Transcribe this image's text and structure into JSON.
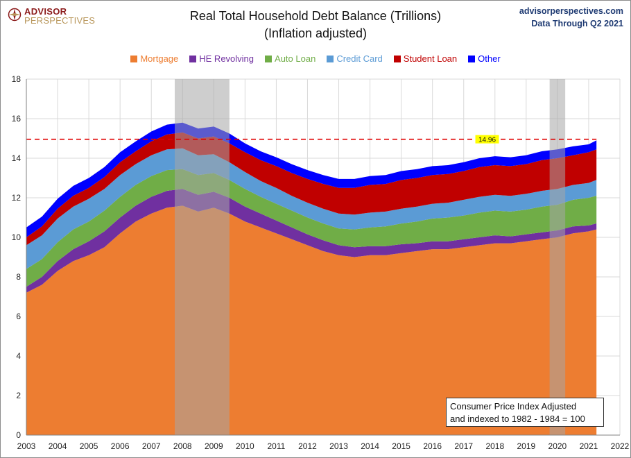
{
  "header": {
    "logo_line1": "ADVISOR",
    "logo_line2": "PERSPECTIVES",
    "title_line1": "Real Total Household Debt Balance (Trillions)",
    "title_line2": "(Inflation adjusted)",
    "source_line1": "advisorperspectives.com",
    "source_line2": "Data Through Q2 2021"
  },
  "note": {
    "line1": "Consumer Price Index Adjusted",
    "line2": "and indexed to 1982 - 1984 = 100"
  },
  "colors": {
    "Mortgage": "#ed7d31",
    "HE Revolving": "#7030a0",
    "Auto Loan": "#70ad47",
    "Credit Card": "#5b9bd5",
    "Student Loan": "#c00000",
    "Other": "#0000ff",
    "reference_line": "#e00000",
    "recession": "#a6a6a6",
    "grid": "#d9d9d9",
    "marker_bg": "#ffff00"
  },
  "chart_data": {
    "type": "area",
    "stacked": true,
    "title": "Real Total Household Debt Balance (Trillions)",
    "subtitle": "(Inflation adjusted)",
    "xlabel": "",
    "ylabel": "",
    "xlim": [
      2003,
      2022
    ],
    "ylim": [
      0,
      18
    ],
    "x_ticks": [
      2003,
      2004,
      2005,
      2006,
      2007,
      2008,
      2009,
      2010,
      2011,
      2012,
      2013,
      2014,
      2015,
      2016,
      2017,
      2018,
      2019,
      2020,
      2021,
      2022
    ],
    "y_ticks": [
      0,
      2,
      4,
      6,
      8,
      10,
      12,
      14,
      16,
      18
    ],
    "grid": true,
    "legend_position": "top-center",
    "x": [
      2003.0,
      2003.5,
      2004.0,
      2004.5,
      2005.0,
      2005.5,
      2006.0,
      2006.5,
      2007.0,
      2007.5,
      2008.0,
      2008.5,
      2009.0,
      2009.5,
      2010.0,
      2010.5,
      2011.0,
      2011.5,
      2012.0,
      2012.5,
      2013.0,
      2013.5,
      2014.0,
      2014.5,
      2015.0,
      2015.5,
      2016.0,
      2016.5,
      2017.0,
      2017.5,
      2018.0,
      2018.5,
      2019.0,
      2019.5,
      2020.0,
      2020.5,
      2021.0,
      2021.25
    ],
    "series": [
      {
        "name": "Mortgage",
        "values": [
          7.2,
          7.6,
          8.3,
          8.8,
          9.1,
          9.5,
          10.2,
          10.8,
          11.2,
          11.5,
          11.6,
          11.3,
          11.5,
          11.2,
          10.8,
          10.5,
          10.2,
          9.9,
          9.6,
          9.3,
          9.1,
          9.0,
          9.1,
          9.1,
          9.2,
          9.3,
          9.4,
          9.4,
          9.5,
          9.6,
          9.7,
          9.7,
          9.8,
          9.9,
          10.0,
          10.2,
          10.3,
          10.4
        ]
      },
      {
        "name": "HE Revolving",
        "values": [
          0.3,
          0.4,
          0.5,
          0.6,
          0.7,
          0.8,
          0.8,
          0.8,
          0.85,
          0.85,
          0.85,
          0.85,
          0.8,
          0.8,
          0.75,
          0.7,
          0.65,
          0.6,
          0.55,
          0.55,
          0.5,
          0.5,
          0.45,
          0.45,
          0.45,
          0.4,
          0.4,
          0.4,
          0.4,
          0.4,
          0.4,
          0.35,
          0.35,
          0.35,
          0.35,
          0.35,
          0.3,
          0.3
        ]
      },
      {
        "name": "Auto Loan",
        "values": [
          0.9,
          0.9,
          0.95,
          1.0,
          1.0,
          1.05,
          1.05,
          1.05,
          1.05,
          1.05,
          1.0,
          1.0,
          0.95,
          0.9,
          0.9,
          0.85,
          0.85,
          0.85,
          0.85,
          0.85,
          0.85,
          0.9,
          0.95,
          1.0,
          1.05,
          1.1,
          1.15,
          1.2,
          1.2,
          1.25,
          1.25,
          1.25,
          1.25,
          1.3,
          1.3,
          1.35,
          1.4,
          1.4
        ]
      },
      {
        "name": "Credit Card",
        "values": [
          1.2,
          1.2,
          1.2,
          1.15,
          1.15,
          1.1,
          1.1,
          1.05,
          1.05,
          1.05,
          1.05,
          1.0,
          0.95,
          0.9,
          0.85,
          0.8,
          0.8,
          0.75,
          0.75,
          0.75,
          0.75,
          0.75,
          0.75,
          0.75,
          0.75,
          0.75,
          0.75,
          0.75,
          0.8,
          0.8,
          0.8,
          0.8,
          0.8,
          0.8,
          0.8,
          0.75,
          0.75,
          0.8
        ]
      },
      {
        "name": "Student Loan",
        "values": [
          0.4,
          0.45,
          0.5,
          0.55,
          0.55,
          0.6,
          0.65,
          0.65,
          0.7,
          0.75,
          0.8,
          0.85,
          0.9,
          0.95,
          1.0,
          1.05,
          1.1,
          1.15,
          1.2,
          1.25,
          1.3,
          1.35,
          1.4,
          1.4,
          1.45,
          1.45,
          1.45,
          1.45,
          1.45,
          1.5,
          1.5,
          1.5,
          1.5,
          1.55,
          1.55,
          1.5,
          1.55,
          1.55
        ]
      },
      {
        "name": "Other",
        "values": [
          0.5,
          0.5,
          0.5,
          0.5,
          0.5,
          0.5,
          0.5,
          0.5,
          0.5,
          0.5,
          0.5,
          0.5,
          0.5,
          0.5,
          0.45,
          0.45,
          0.45,
          0.45,
          0.45,
          0.45,
          0.45,
          0.45,
          0.45,
          0.45,
          0.45,
          0.45,
          0.45,
          0.45,
          0.45,
          0.45,
          0.45,
          0.45,
          0.45,
          0.45,
          0.45,
          0.45,
          0.4,
          0.45
        ]
      }
    ],
    "reference_line": {
      "value": 14.96,
      "label": "14.96",
      "style": "dashed"
    },
    "recession_bands": [
      [
        2007.75,
        2009.5
      ],
      [
        2019.75,
        2020.25
      ]
    ]
  }
}
